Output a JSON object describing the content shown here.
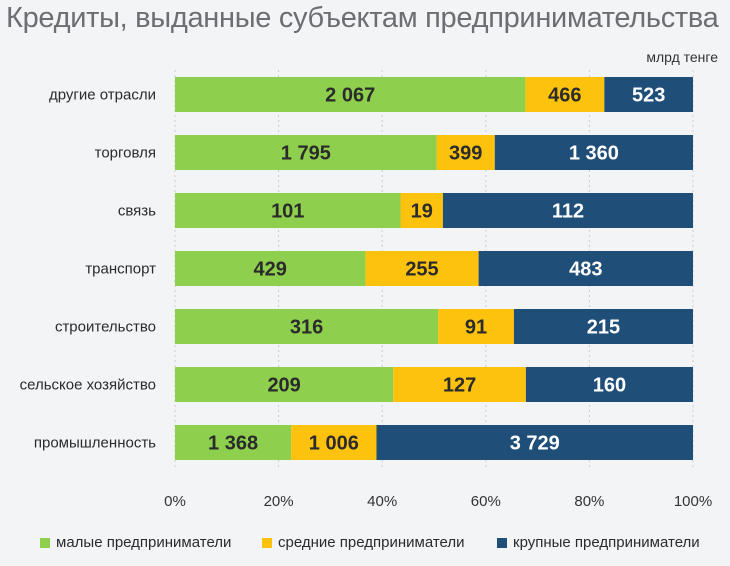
{
  "title": "Кредиты, выданные субъектам предпринимательства",
  "unit": "млрд тенге",
  "chart_data": {
    "type": "bar",
    "orientation": "horizontal",
    "stacking": "percent",
    "title": "Кредиты, выданные субъектам предпринимательства",
    "unit": "млрд тенге",
    "categories": [
      "другие отрасли",
      "торговля",
      "связь",
      "транспорт",
      "строительство",
      "сельское хозяйство",
      "промышленность"
    ],
    "series": [
      {
        "name": "малые предприниматели",
        "color": "#8ed04e",
        "values": [
          2067,
          1795,
          101,
          429,
          316,
          209,
          1368
        ],
        "labels": [
          "2 067",
          "1 795",
          "101",
          "429",
          "316",
          "209",
          "1 368"
        ]
      },
      {
        "name": "средние предприниматели",
        "color": "#fdc20e",
        "values": [
          466,
          399,
          19,
          255,
          91,
          127,
          1006
        ],
        "labels": [
          "466",
          "399",
          "19",
          "255",
          "91",
          "127",
          "1 006"
        ]
      },
      {
        "name": "крупные предприниматели",
        "color": "#1f4e79",
        "values": [
          523,
          1360,
          112,
          483,
          215,
          160,
          3729
        ],
        "labels": [
          "523",
          "1 360",
          "112",
          "483",
          "215",
          "160",
          "3 729"
        ]
      }
    ],
    "xlim": [
      0,
      100
    ],
    "x_ticks": [
      "0%",
      "20%",
      "40%",
      "60%",
      "80%",
      "100%"
    ],
    "grid": true,
    "legend_position": "bottom"
  }
}
